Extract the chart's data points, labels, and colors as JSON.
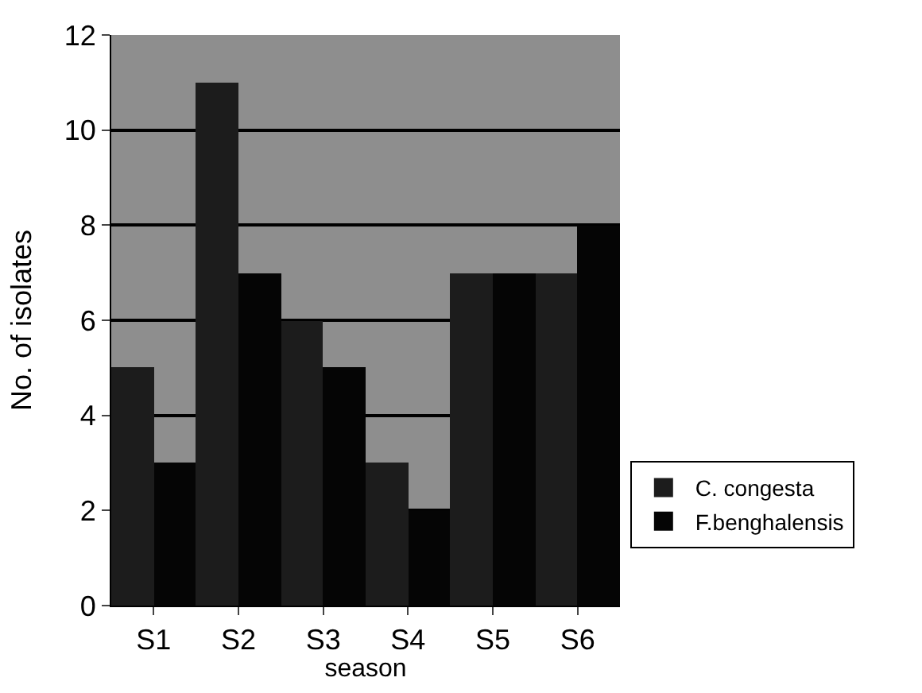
{
  "chart_data": {
    "type": "bar",
    "xlabel": "season",
    "ylabel": "No. of isolates",
    "categories": [
      "S1",
      "S2",
      "S3",
      "S4",
      "S5",
      "S6"
    ],
    "series": [
      {
        "name": "C. congesta",
        "color": "#1c1c1c",
        "values": [
          5,
          11,
          6,
          3,
          7,
          7
        ]
      },
      {
        "name": "F.benghalensis",
        "color": "#050505",
        "values": [
          3,
          7,
          5,
          2,
          7,
          8
        ]
      }
    ],
    "ylim": [
      0,
      12
    ],
    "yticks": [
      0,
      2,
      4,
      6,
      8,
      10,
      12
    ],
    "grid": "y",
    "legend": "bottom right"
  }
}
